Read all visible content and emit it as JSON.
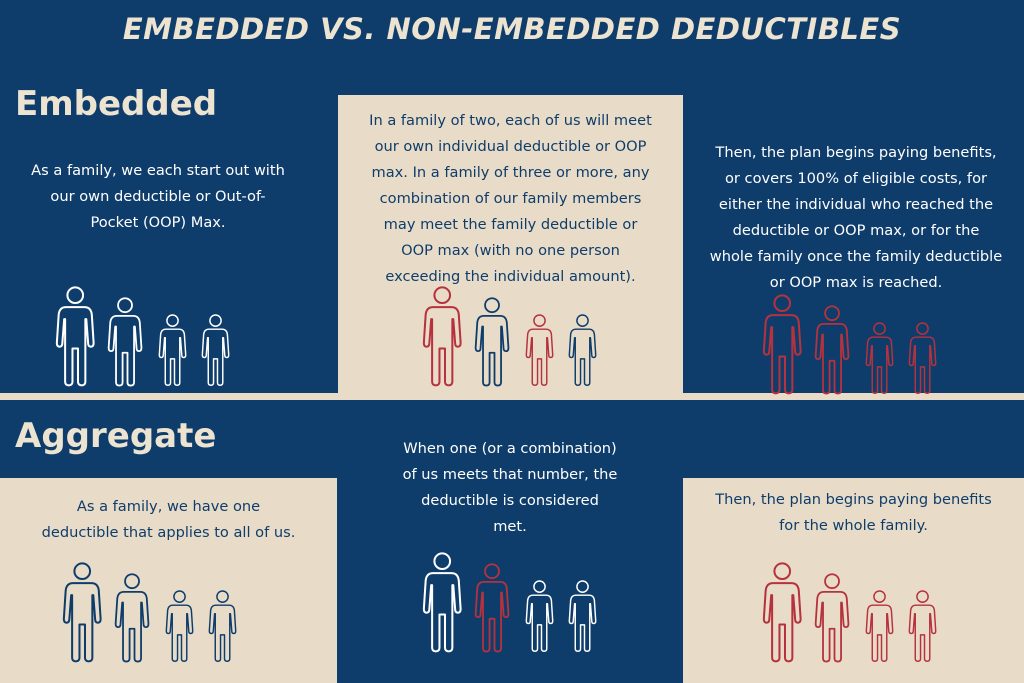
{
  "title": "EMBEDDED VS. NON-EMBEDDED DEDUCTIBLES",
  "colors": {
    "navy": "#0f3d6b",
    "beige": "#e8dcc8",
    "red": "#b5323e",
    "white": "#ffffff"
  },
  "embedded": {
    "heading": "Embedded",
    "col1": {
      "lines": [
        "As a family, we each start out with",
        "our own deductible or Out-of-",
        "Pocket (OOP) Max."
      ]
    },
    "col2": {
      "lines": [
        "In a family of two, each of us will meet",
        "our own individual deductible or OOP",
        "max. In a family of three or more, any",
        "combination of our family members",
        "may meet the family deductible or",
        "OOP max (with no one person",
        "exceeding the individual amount)."
      ]
    },
    "col3": {
      "lines": [
        "Then, the plan begins paying benefits,",
        "or covers 100% of eligible costs, for",
        "either the individual who reached the",
        "deductible or OOP max, or for the",
        "whole family once the family deductible",
        "or OOP max is reached."
      ]
    }
  },
  "aggregate": {
    "heading": "Aggregate",
    "col1": {
      "lines": [
        "As a family, we have one",
        "deductible that applies to all of us."
      ]
    },
    "col2": {
      "lines": [
        "When one (or a combination)",
        "of us meets that number, the",
        "deductible is considered",
        "met."
      ]
    },
    "col3": {
      "lines": [
        "Then, the plan begins paying benefits",
        "for the whole family."
      ]
    }
  }
}
